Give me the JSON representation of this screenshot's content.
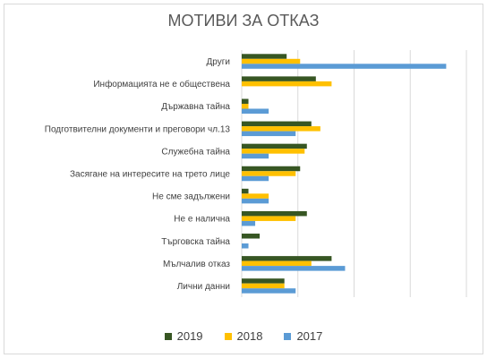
{
  "chart_data": {
    "type": "bar",
    "orientation": "horizontal",
    "title": "МОТИВИ ЗА ОТКАЗ",
    "xlabel": "",
    "ylabel": "",
    "value_axis_labels_shown": false,
    "value_units": "estimated, arbitrary units (no axis scale printed)",
    "xlim": [
      0,
      100
    ],
    "grid": true,
    "legend_position": "bottom",
    "categories": [
      "Други",
      "Информацията не е обществена",
      "Държавна тайна",
      "Подготвителни документи и преговори чл.13",
      "Служебна тайна",
      "Засягане на интересите на трето лице",
      "Не сме задължени",
      "Не е налична",
      "Търговска тайна",
      "Мълчалив отказ",
      "Лични данни"
    ],
    "series": [
      {
        "name": "2019",
        "color": "#375623",
        "values": [
          20,
          33,
          3,
          31,
          29,
          26,
          3,
          29,
          8,
          40,
          19
        ]
      },
      {
        "name": "2018",
        "color": "#ffc000",
        "values": [
          26,
          40,
          3,
          35,
          28,
          24,
          12,
          24,
          0,
          31,
          19
        ]
      },
      {
        "name": "2017",
        "color": "#5b9bd5",
        "values": [
          91,
          0,
          12,
          24,
          12,
          12,
          12,
          6,
          3,
          46,
          24
        ]
      }
    ]
  }
}
